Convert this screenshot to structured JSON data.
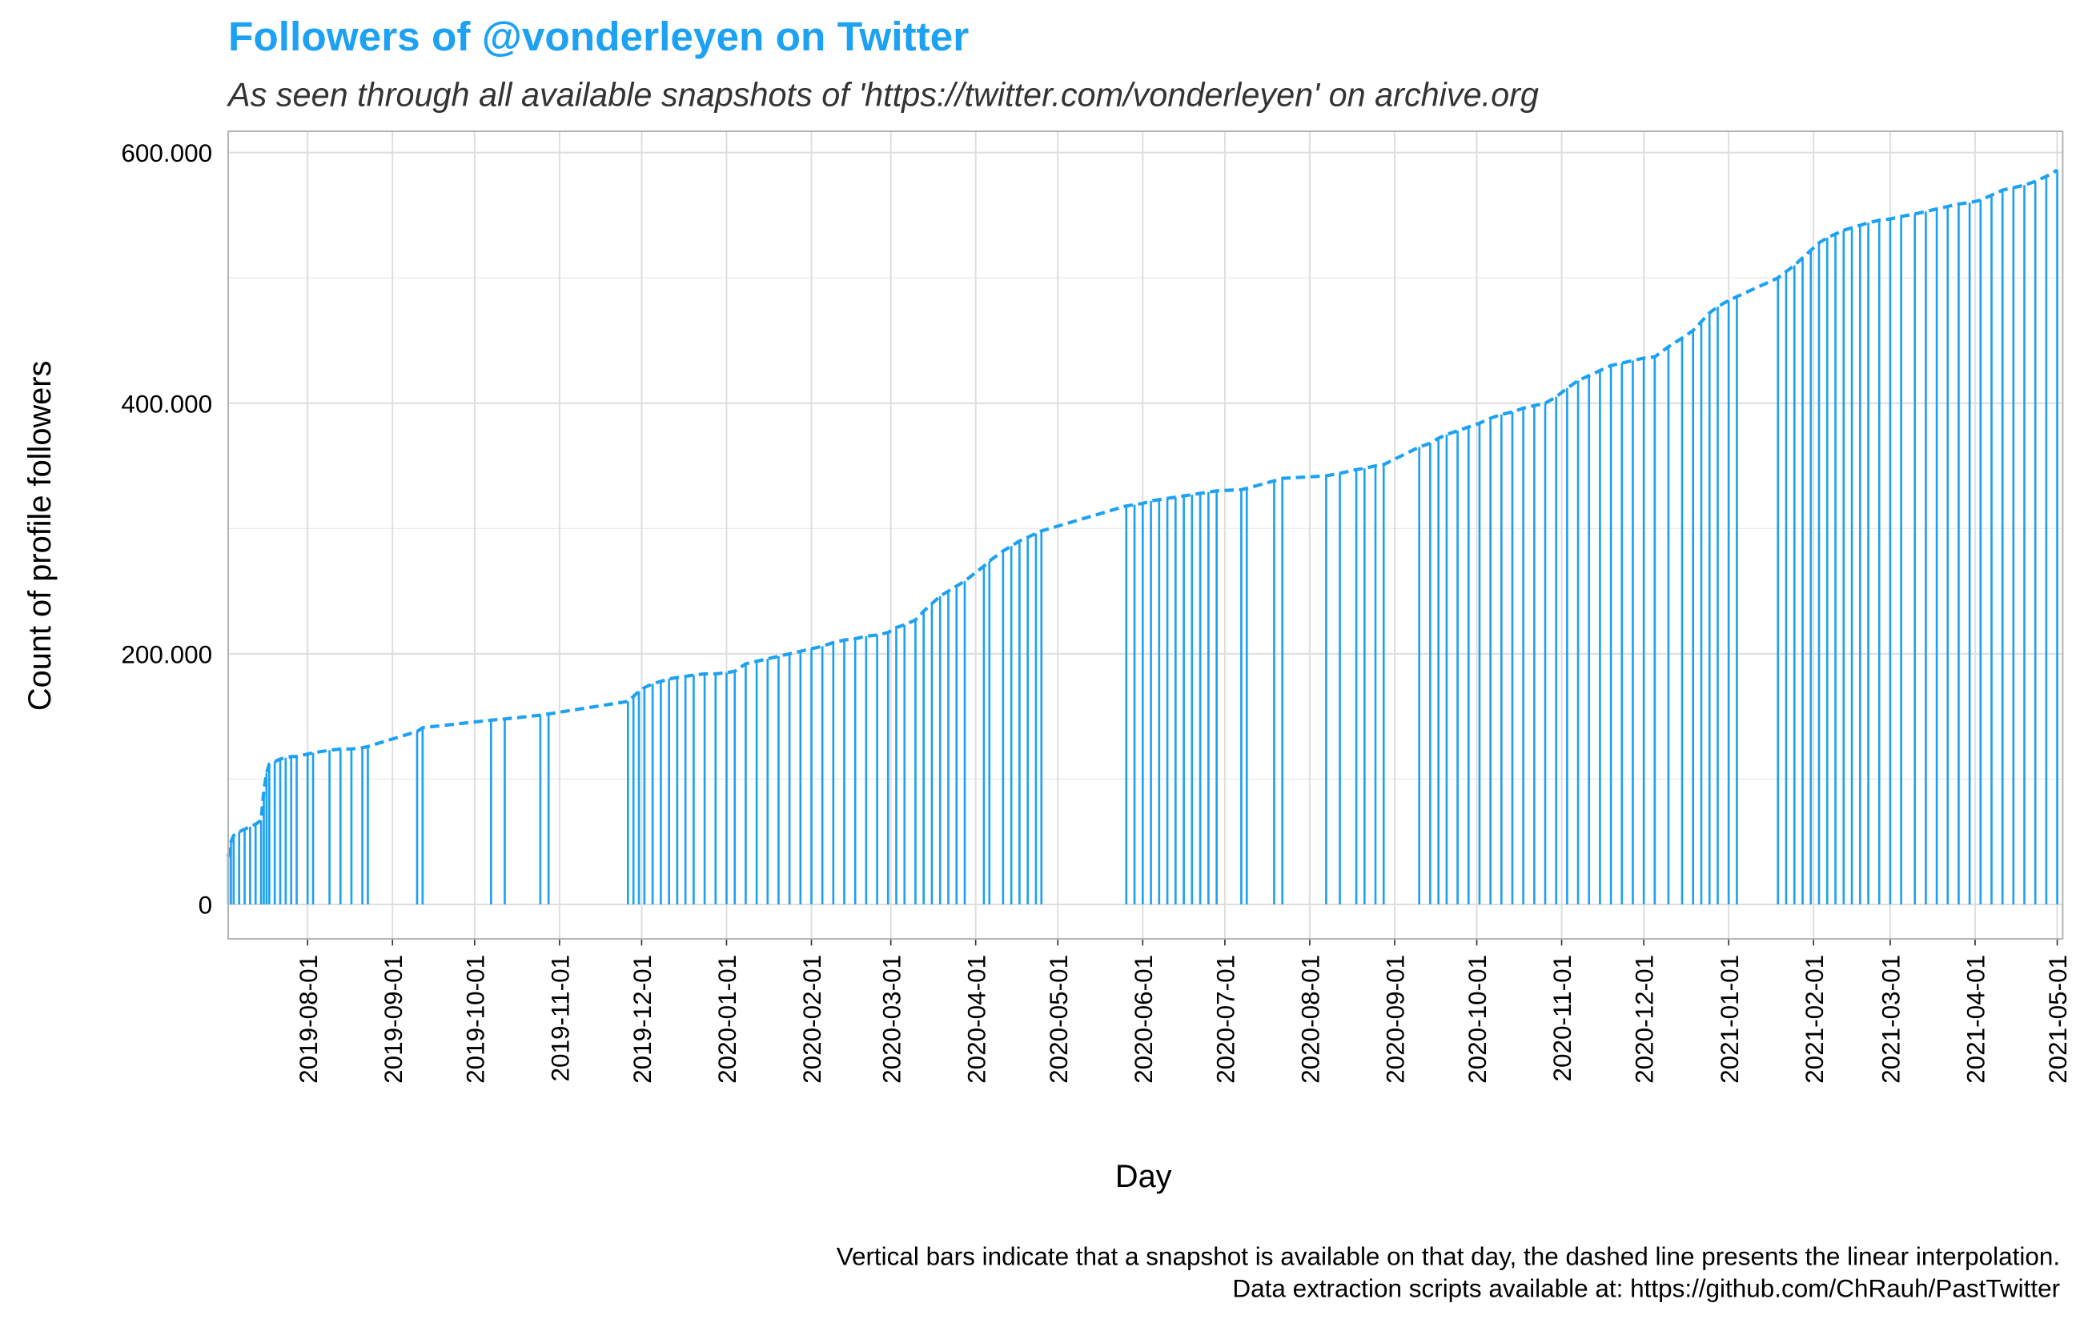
{
  "chart_data": {
    "type": "bar-line",
    "title": "Followers of @vonderleyen on Twitter",
    "subtitle": "As seen through all available snapshots of 'https://twitter.com/vonderleyen' on archive.org",
    "x_label": "Day",
    "y_label": "Count of profile followers",
    "caption": [
      "Vertical bars indicate that a snapshot is available on that day, the dashed line presents the linear interpolation.",
      "Data extraction scripts available at: https://github.com/ChRauh/PastTwitter"
    ],
    "color": "#1da1f2",
    "grid": true,
    "xlim": [
      "2019-07-03",
      "2021-05-03"
    ],
    "xticks": [
      "2019-08-01",
      "2019-09-01",
      "2019-10-01",
      "2019-11-01",
      "2019-12-01",
      "2020-01-01",
      "2020-02-01",
      "2020-03-01",
      "2020-04-01",
      "2020-05-01",
      "2020-06-01",
      "2020-07-01",
      "2020-08-01",
      "2020-09-01",
      "2020-10-01",
      "2020-11-01",
      "2020-12-01",
      "2021-01-01",
      "2021-02-01",
      "2021-03-01",
      "2021-04-01",
      "2021-05-01"
    ],
    "ylim": [
      -27500,
      617000
    ],
    "yticks": [
      0,
      {
        "value": 200000,
        "label": "200.000"
      },
      {
        "value": 400000,
        "label": "400.000"
      },
      {
        "value": 600000,
        "label": "600.000"
      }
    ],
    "x": [
      "2019-07-03",
      "2019-07-04",
      "2019-07-05",
      "2019-07-07",
      "2019-07-09",
      "2019-07-11",
      "2019-07-13",
      "2019-07-15",
      "2019-07-16",
      "2019-07-17",
      "2019-07-18",
      "2019-07-20",
      "2019-07-22",
      "2019-07-24",
      "2019-07-26",
      "2019-07-28",
      "2019-08-01",
      "2019-08-03",
      "2019-08-09",
      "2019-08-13",
      "2019-08-17",
      "2019-08-21",
      "2019-08-23",
      "2019-09-10",
      "2019-09-12",
      "2019-10-07",
      "2019-10-12",
      "2019-10-25",
      "2019-10-28",
      "2019-11-26",
      "2019-11-28",
      "2019-11-30",
      "2019-12-02",
      "2019-12-05",
      "2019-12-08",
      "2019-12-11",
      "2019-12-14",
      "2019-12-17",
      "2019-12-20",
      "2019-12-24",
      "2019-12-28",
      "2020-01-01",
      "2020-01-04",
      "2020-01-08",
      "2020-01-12",
      "2020-01-16",
      "2020-01-20",
      "2020-01-24",
      "2020-01-28",
      "2020-02-01",
      "2020-02-05",
      "2020-02-09",
      "2020-02-13",
      "2020-02-17",
      "2020-02-21",
      "2020-02-25",
      "2020-02-29",
      "2020-03-03",
      "2020-03-06",
      "2020-03-10",
      "2020-03-13",
      "2020-03-16",
      "2020-03-19",
      "2020-03-22",
      "2020-03-25",
      "2020-03-28",
      "2020-04-04",
      "2020-04-06",
      "2020-04-11",
      "2020-04-14",
      "2020-04-17",
      "2020-04-20",
      "2020-04-23",
      "2020-04-25",
      "2020-05-26",
      "2020-05-29",
      "2020-06-01",
      "2020-06-04",
      "2020-06-07",
      "2020-06-10",
      "2020-06-13",
      "2020-06-16",
      "2020-06-19",
      "2020-06-22",
      "2020-06-25",
      "2020-06-28",
      "2020-07-07",
      "2020-07-09",
      "2020-07-19",
      "2020-07-22",
      "2020-08-07",
      "2020-08-12",
      "2020-08-18",
      "2020-08-21",
      "2020-08-25",
      "2020-08-28",
      "2020-09-10",
      "2020-09-14",
      "2020-09-17",
      "2020-09-20",
      "2020-09-24",
      "2020-09-28",
      "2020-10-02",
      "2020-10-06",
      "2020-10-10",
      "2020-10-14",
      "2020-10-18",
      "2020-10-22",
      "2020-10-26",
      "2020-10-30",
      "2020-11-03",
      "2020-11-07",
      "2020-11-11",
      "2020-11-15",
      "2020-11-19",
      "2020-11-23",
      "2020-11-27",
      "2020-12-01",
      "2020-12-05",
      "2020-12-10",
      "2020-12-15",
      "2020-12-19",
      "2020-12-22",
      "2020-12-25",
      "2020-12-28",
      "2021-01-01",
      "2021-01-04",
      "2021-01-19",
      "2021-01-22",
      "2021-01-25",
      "2021-01-28",
      "2021-01-31",
      "2021-02-03",
      "2021-02-06",
      "2021-02-09",
      "2021-02-12",
      "2021-02-15",
      "2021-02-18",
      "2021-02-21",
      "2021-02-25",
      "2021-03-01",
      "2021-03-05",
      "2021-03-10",
      "2021-03-14",
      "2021-03-18",
      "2021-03-22",
      "2021-03-26",
      "2021-03-30",
      "2021-04-03",
      "2021-04-07",
      "2021-04-11",
      "2021-04-15",
      "2021-04-19",
      "2021-04-23",
      "2021-04-27",
      "2021-05-01"
    ],
    "values": [
      38000,
      50000,
      55000,
      58000,
      60000,
      62000,
      64000,
      67000,
      90000,
      105000,
      112000,
      114000,
      116000,
      117000,
      118000,
      118000,
      120000,
      121000,
      123000,
      124000,
      124000,
      125000,
      126000,
      138000,
      141000,
      147000,
      148000,
      151000,
      152000,
      162000,
      166000,
      170000,
      173000,
      176000,
      178000,
      180000,
      181000,
      182000,
      183000,
      184000,
      184000,
      185000,
      186000,
      192000,
      194000,
      196000,
      198000,
      200000,
      202000,
      204000,
      206000,
      209000,
      211000,
      212000,
      214000,
      215000,
      217000,
      221000,
      223000,
      227000,
      234000,
      240000,
      246000,
      250000,
      254000,
      258000,
      270000,
      274000,
      282000,
      286000,
      290000,
      293000,
      296000,
      298000,
      318000,
      319000,
      320000,
      322000,
      323000,
      324000,
      325000,
      326000,
      327000,
      328000,
      329000,
      330000,
      331000,
      332000,
      338000,
      340000,
      342000,
      344000,
      347000,
      348000,
      350000,
      351000,
      365000,
      368000,
      372000,
      375000,
      378000,
      381000,
      384000,
      388000,
      391000,
      393000,
      396000,
      398000,
      400000,
      405000,
      412000,
      418000,
      422000,
      426000,
      430000,
      432000,
      434000,
      436000,
      437000,
      445000,
      452000,
      458000,
      465000,
      472000,
      477000,
      482000,
      485000,
      500000,
      505000,
      510000,
      516000,
      522000,
      528000,
      532000,
      535000,
      538000,
      540000,
      542000,
      544000,
      546000,
      547000,
      549000,
      551000,
      553000,
      555000,
      557000,
      559000,
      560000,
      562000,
      566000,
      570000,
      572000,
      574000,
      577000,
      581000,
      586000
    ]
  }
}
